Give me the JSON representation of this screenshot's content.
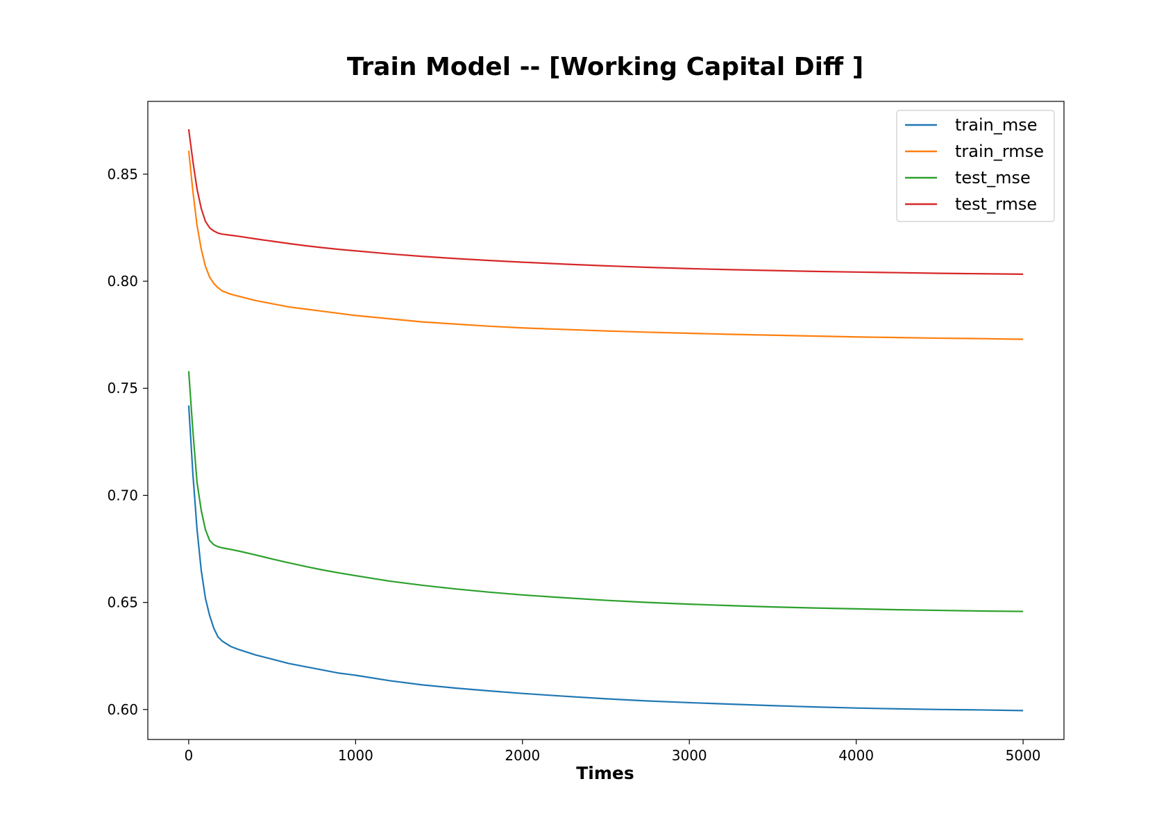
{
  "chart_data": {
    "type": "line",
    "title": "Train Model -- [Working Capital Diff ]",
    "xlabel": "Times",
    "ylabel": "",
    "xlim": [
      -245,
      5245
    ],
    "ylim": [
      0.586,
      0.884
    ],
    "xticks": [
      0,
      1000,
      2000,
      3000,
      4000,
      5000
    ],
    "xtick_labels": [
      "0",
      "1000",
      "2000",
      "3000",
      "4000",
      "5000"
    ],
    "yticks": [
      0.6,
      0.65,
      0.7,
      0.75,
      0.8,
      0.85
    ],
    "ytick_labels": [
      "0.60",
      "0.65",
      "0.70",
      "0.75",
      "0.80",
      "0.85"
    ],
    "grid": false,
    "legend_position": "top-right",
    "x": [
      0,
      25,
      50,
      75,
      100,
      125,
      150,
      175,
      200,
      250,
      300,
      400,
      500,
      600,
      700,
      800,
      900,
      1000,
      1200,
      1400,
      1600,
      1800,
      2000,
      2250,
      2500,
      2750,
      3000,
      3250,
      3500,
      3750,
      4000,
      4250,
      4500,
      4750,
      5000
    ],
    "series": [
      {
        "name": "train_mse",
        "color": "#1f77b4",
        "values": [
          0.742,
          0.71,
          0.684,
          0.665,
          0.652,
          0.644,
          0.638,
          0.634,
          0.632,
          0.6295,
          0.628,
          0.6255,
          0.6235,
          0.6215,
          0.62,
          0.6185,
          0.617,
          0.616,
          0.6135,
          0.6115,
          0.61,
          0.6087,
          0.6075,
          0.6062,
          0.605,
          0.604,
          0.6032,
          0.6025,
          0.6018,
          0.6012,
          0.6007,
          0.6003,
          0.6,
          0.5998,
          0.5995
        ]
      },
      {
        "name": "train_rmse",
        "color": "#ff7f0e",
        "values": [
          0.861,
          0.842,
          0.826,
          0.815,
          0.807,
          0.802,
          0.799,
          0.797,
          0.7955,
          0.794,
          0.793,
          0.791,
          0.7895,
          0.788,
          0.787,
          0.786,
          0.785,
          0.784,
          0.7825,
          0.781,
          0.78,
          0.779,
          0.7782,
          0.7775,
          0.7768,
          0.7762,
          0.7757,
          0.7752,
          0.7748,
          0.7744,
          0.774,
          0.7737,
          0.7734,
          0.7732,
          0.7729
        ]
      },
      {
        "name": "test_mse",
        "color": "#2ca02c",
        "values": [
          0.758,
          0.73,
          0.706,
          0.693,
          0.684,
          0.679,
          0.677,
          0.676,
          0.6755,
          0.6748,
          0.674,
          0.6722,
          0.6703,
          0.6685,
          0.6668,
          0.6652,
          0.6638,
          0.6625,
          0.66,
          0.658,
          0.6563,
          0.6548,
          0.6535,
          0.6522,
          0.651,
          0.65,
          0.6492,
          0.6485,
          0.6479,
          0.6474,
          0.647,
          0.6466,
          0.6463,
          0.646,
          0.6458
        ]
      },
      {
        "name": "test_rmse",
        "color": "#d62728",
        "values": [
          0.871,
          0.856,
          0.843,
          0.834,
          0.828,
          0.825,
          0.8235,
          0.8225,
          0.822,
          0.8215,
          0.821,
          0.8198,
          0.8187,
          0.8176,
          0.8166,
          0.8157,
          0.8149,
          0.8142,
          0.8128,
          0.8116,
          0.8106,
          0.8097,
          0.8089,
          0.808,
          0.8072,
          0.8065,
          0.8059,
          0.8054,
          0.805,
          0.8046,
          0.8043,
          0.804,
          0.8037,
          0.8035,
          0.8033
        ]
      }
    ]
  }
}
